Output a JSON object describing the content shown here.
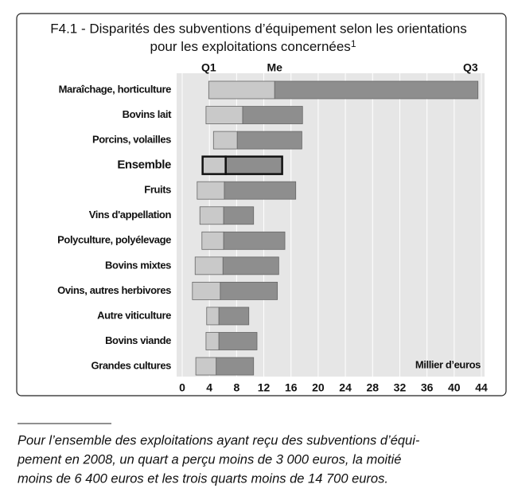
{
  "chart_data": {
    "type": "floating-bar",
    "title": [
      "F4.1 - Disparités des subventions d’équipement selon les orientations",
      "pour les exploitations concernées"
    ],
    "title_note_marker": "1",
    "categories": [
      "Maraîchage, horticulture",
      "Bovins lait",
      "Porcins, volailles",
      "Ensemble",
      "Fruits",
      "Vins d'appellation",
      "Polyculture, polyélevage",
      "Bovins mixtes",
      "Ovins, autres herbivores",
      "Autre viticulture",
      "Bovins viande",
      "Grandes cultures"
    ],
    "highlight_index": 3,
    "series": [
      {
        "name": "Q1",
        "values": [
          3.9,
          3.5,
          4.6,
          3.0,
          2.2,
          2.6,
          2.9,
          1.9,
          1.5,
          3.6,
          3.5,
          2.0
        ]
      },
      {
        "name": "Me",
        "values": [
          13.6,
          8.9,
          8.1,
          6.4,
          6.2,
          6.1,
          6.1,
          6.0,
          5.6,
          5.4,
          5.4,
          5.0
        ]
      },
      {
        "name": "Q3",
        "values": [
          43.5,
          17.7,
          17.6,
          14.7,
          16.7,
          10.5,
          15.1,
          14.2,
          14.0,
          9.8,
          11.0,
          10.5
        ]
      }
    ],
    "colors": [
      "#c9c9c9",
      "#8e8e8e"
    ],
    "xlabel": "Millier d’euros",
    "xlim": [
      0,
      44
    ],
    "xticks": [
      0,
      4,
      8,
      12,
      16,
      20,
      24,
      28,
      32,
      36,
      40,
      44
    ],
    "grid": true,
    "note": [
      "Pour l’ensemble des exploitations ayant reçu des subventions d’équi-",
      "pement en 2008, un quart a perçu moins de 3 000 euros, la moitié",
      "moins de 6 400 euros et les trois quarts moins de 14 700 euros."
    ]
  }
}
